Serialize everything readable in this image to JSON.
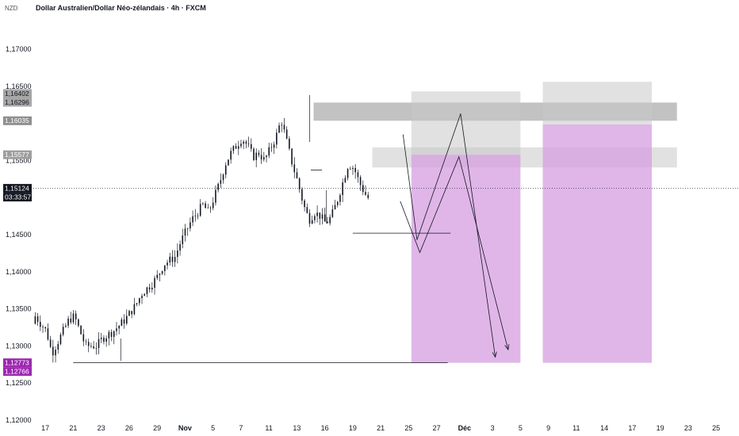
{
  "header": {
    "currency": "NZD",
    "title": "Dollar Australien/Dollar Néo-zélandais · 4h · FXCM"
  },
  "colors": {
    "candle": "#131722",
    "zone_gray": "#c8c8c8",
    "zone_gray_dark": "#9a9a9a",
    "zone_purple": "#d59ee0",
    "badge_dark": "#131722",
    "badge_gray": "#8f8f8f",
    "badge_purple": "#9c27b0"
  },
  "chart_data": {
    "type": "candlestick",
    "symbol": "AUD/NZD",
    "timeframe": "4h",
    "ylim": [
      1.12,
      1.175
    ],
    "yticks": [
      {
        "label": "1,17000",
        "value": 1.17
      },
      {
        "label": "1,16500",
        "value": 1.165
      },
      {
        "label": "1,15500",
        "value": 1.155
      },
      {
        "label": "1,14500",
        "value": 1.145
      },
      {
        "label": "1,14000",
        "value": 1.14
      },
      {
        "label": "1,13500",
        "value": 1.135
      },
      {
        "label": "1,13000",
        "value": 1.13
      },
      {
        "label": "1,12500",
        "value": 1.125
      },
      {
        "label": "1,12000",
        "value": 1.12
      }
    ],
    "x_labels": [
      {
        "label": "17",
        "idx": 2
      },
      {
        "label": "21",
        "idx": 7
      },
      {
        "label": "23",
        "idx": 12
      },
      {
        "label": "26",
        "idx": 17
      },
      {
        "label": "29",
        "idx": 22
      },
      {
        "label": "Nov",
        "idx": 27
      },
      {
        "label": "5",
        "idx": 32
      },
      {
        "label": "7",
        "idx": 37
      },
      {
        "label": "11",
        "idx": 42
      },
      {
        "label": "13",
        "idx": 47
      },
      {
        "label": "16",
        "idx": 52
      },
      {
        "label": "19",
        "idx": 57
      },
      {
        "label": "21",
        "idx": 62
      },
      {
        "label": "25",
        "idx": 67
      },
      {
        "label": "27",
        "idx": 72
      },
      {
        "label": "Déc",
        "idx": 77
      },
      {
        "label": "3",
        "idx": 82
      },
      {
        "label": "5",
        "idx": 87
      },
      {
        "label": "9",
        "idx": 92
      },
      {
        "label": "11",
        "idx": 97
      },
      {
        "label": "14",
        "idx": 102
      },
      {
        "label": "17",
        "idx": 107
      },
      {
        "label": "19",
        "idx": 112
      },
      {
        "label": "23",
        "idx": 117
      },
      {
        "label": "25",
        "idx": 122
      }
    ],
    "price_badges": [
      {
        "label": "1,16402",
        "value": 1.16402,
        "style": "gray"
      },
      {
        "label": "1,16296",
        "value": 1.16296,
        "style": "gray"
      },
      {
        "label": "1,16035",
        "value": 1.16035,
        "style": "graydark"
      },
      {
        "label": "1,15577",
        "value": 1.15577,
        "style": "graylight"
      },
      {
        "label": "1,15124",
        "value": 1.15124,
        "style": "dark"
      },
      {
        "label": "1,12773",
        "value": 1.12773,
        "style": "purple"
      },
      {
        "label": "1,12766",
        "value": 1.12766,
        "style": "purple"
      }
    ],
    "countdown": "03:33:57",
    "current_price": 1.15124,
    "candles_start": 1.133,
    "zones": [
      {
        "name": "supply-zone-top",
        "x0": 50,
        "x1": 115,
        "y0": 1.1628,
        "y1": 1.16035,
        "color": "graydark",
        "opacity": 0.6
      },
      {
        "name": "supply-zone-mid",
        "x0": 60.5,
        "x1": 115,
        "y0": 1.15677,
        "y1": 1.15405,
        "color": "gray",
        "opacity": 0.55
      },
      {
        "name": "projection-zone-gray-1",
        "x0": 67.5,
        "x1": 87,
        "y0": 1.1643,
        "y1": 1.15577,
        "color": "gray",
        "opacity": 0.55
      },
      {
        "name": "projection-zone-gray-2",
        "x0": 91,
        "x1": 110.5,
        "y0": 1.1656,
        "y1": 1.15985,
        "color": "gray",
        "opacity": 0.55
      },
      {
        "name": "target-zone-purple-1",
        "x0": 67.5,
        "x1": 87,
        "y0": 1.15577,
        "y1": 1.12773,
        "color": "purple",
        "opacity": 0.75
      },
      {
        "name": "target-zone-purple-2",
        "x0": 91,
        "x1": 110.5,
        "y0": 1.15985,
        "y1": 1.12773,
        "color": "purple",
        "opacity": 0.75
      }
    ],
    "lines": [
      {
        "name": "support-line-low",
        "x0": 7,
        "y0": 1.12773,
        "x1": 74,
        "y1": 1.12773
      },
      {
        "name": "support-line-mid",
        "x0": 57,
        "y0": 1.1452,
        "x1": 74.5,
        "y1": 1.1452
      },
      {
        "name": "level-line-high",
        "x0": 49.5,
        "y0": 1.1537,
        "x1": 51.5,
        "y1": 1.1537
      }
    ],
    "paths": [
      {
        "name": "projection-path-1",
        "points": [
          [
            66,
            1.1585
          ],
          [
            68.5,
            1.1443
          ],
          [
            76.3,
            1.1613
          ],
          [
            82.5,
            1.1285
          ]
        ]
      },
      {
        "name": "projection-path-2",
        "points": [
          [
            65.5,
            1.1495
          ],
          [
            69,
            1.1426
          ],
          [
            76,
            1.1555
          ],
          [
            84.8,
            1.1295
          ]
        ]
      }
    ]
  }
}
